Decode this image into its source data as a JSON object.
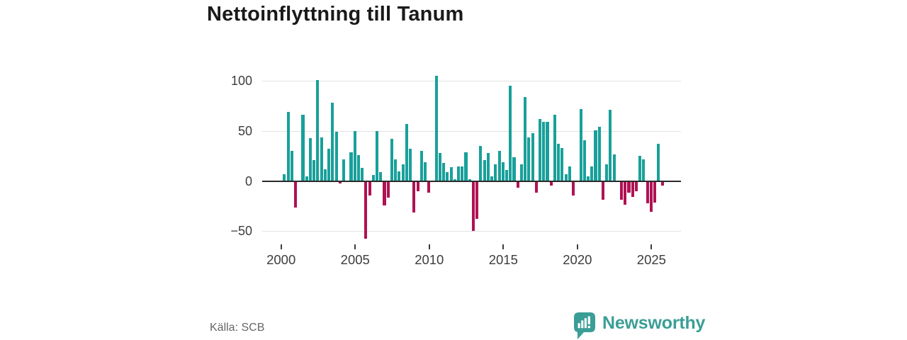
{
  "title": "Nettoinflyttning till Tanum",
  "source": "Källa: SCB",
  "brand": {
    "name": "Newsworthy",
    "icon": "newsworthy-speech-bubble-bar-chart-icon",
    "color": "#3B9E96"
  },
  "colors": {
    "positive_bar": "#19A09A",
    "negative_bar": "#B01253",
    "grid": "#E2E2E2",
    "zero_line": "#2A2A2A",
    "title_text": "#1A1A1A",
    "axis_text": "#3D3D3D",
    "source_text": "#666666"
  },
  "chart_data": {
    "type": "bar",
    "title": "Nettoinflyttning till Tanum",
    "frequency": "quarterly",
    "start_year": 2000,
    "start_quarter": 1,
    "x_ticks": [
      2000,
      2005,
      2010,
      2015,
      2020,
      2025
    ],
    "x_tick_labels": [
      "2000",
      "2005",
      "2010",
      "2015",
      "2020",
      "2025"
    ],
    "y_ticks": [
      100,
      50,
      0,
      -50
    ],
    "y_tick_labels": [
      "100",
      "50",
      "0",
      "−50"
    ],
    "ylim": [
      -60,
      110
    ],
    "grid": true,
    "legend": false,
    "values": [
      7,
      69,
      30,
      -26,
      0,
      66,
      5,
      43,
      21,
      101,
      44,
      12,
      32,
      78,
      49,
      -2,
      22,
      0,
      29,
      50,
      26,
      13,
      -57,
      -14,
      6,
      50,
      9,
      -24,
      -16,
      42,
      22,
      10,
      17,
      57,
      32,
      -31,
      -10,
      30,
      19,
      -11,
      0,
      105,
      28,
      18,
      9,
      14,
      2,
      15,
      15,
      29,
      2,
      -49,
      -37,
      35,
      21,
      28,
      5,
      17,
      30,
      19,
      11,
      95,
      24,
      -6,
      17,
      84,
      44,
      48,
      -11,
      62,
      59,
      59,
      -4,
      66,
      37,
      33,
      7,
      15,
      -14,
      0,
      72,
      41,
      5,
      15,
      51,
      54,
      -18,
      17,
      71,
      27,
      0,
      -18,
      -23,
      -11,
      -15,
      -10,
      25,
      22,
      -22,
      -30,
      -21,
      37,
      -4
    ]
  }
}
